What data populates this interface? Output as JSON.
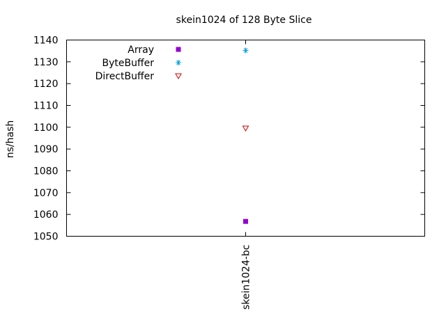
{
  "chart_data": {
    "type": "scatter",
    "title": "skein1024 of 128 Byte Slice",
    "xlabel": "",
    "ylabel": "ns/hash",
    "categories": [
      "skein1024-bc"
    ],
    "ylim": [
      1050,
      1140
    ],
    "yticks": [
      1050,
      1060,
      1070,
      1080,
      1090,
      1100,
      1110,
      1120,
      1130,
      1140
    ],
    "grid": false,
    "legend_position": "top-left",
    "series": [
      {
        "name": "Array",
        "values": [
          1056.8
        ],
        "color": "#9400d3",
        "marker": "filled-square"
      },
      {
        "name": "ByteBuffer",
        "values": [
          1135.2
        ],
        "color": "#009ee0",
        "marker": "asterisk"
      },
      {
        "name": "DirectBuffer",
        "values": [
          1099.6
        ],
        "color": "#d40000",
        "marker": "open-triangle-down"
      }
    ]
  }
}
